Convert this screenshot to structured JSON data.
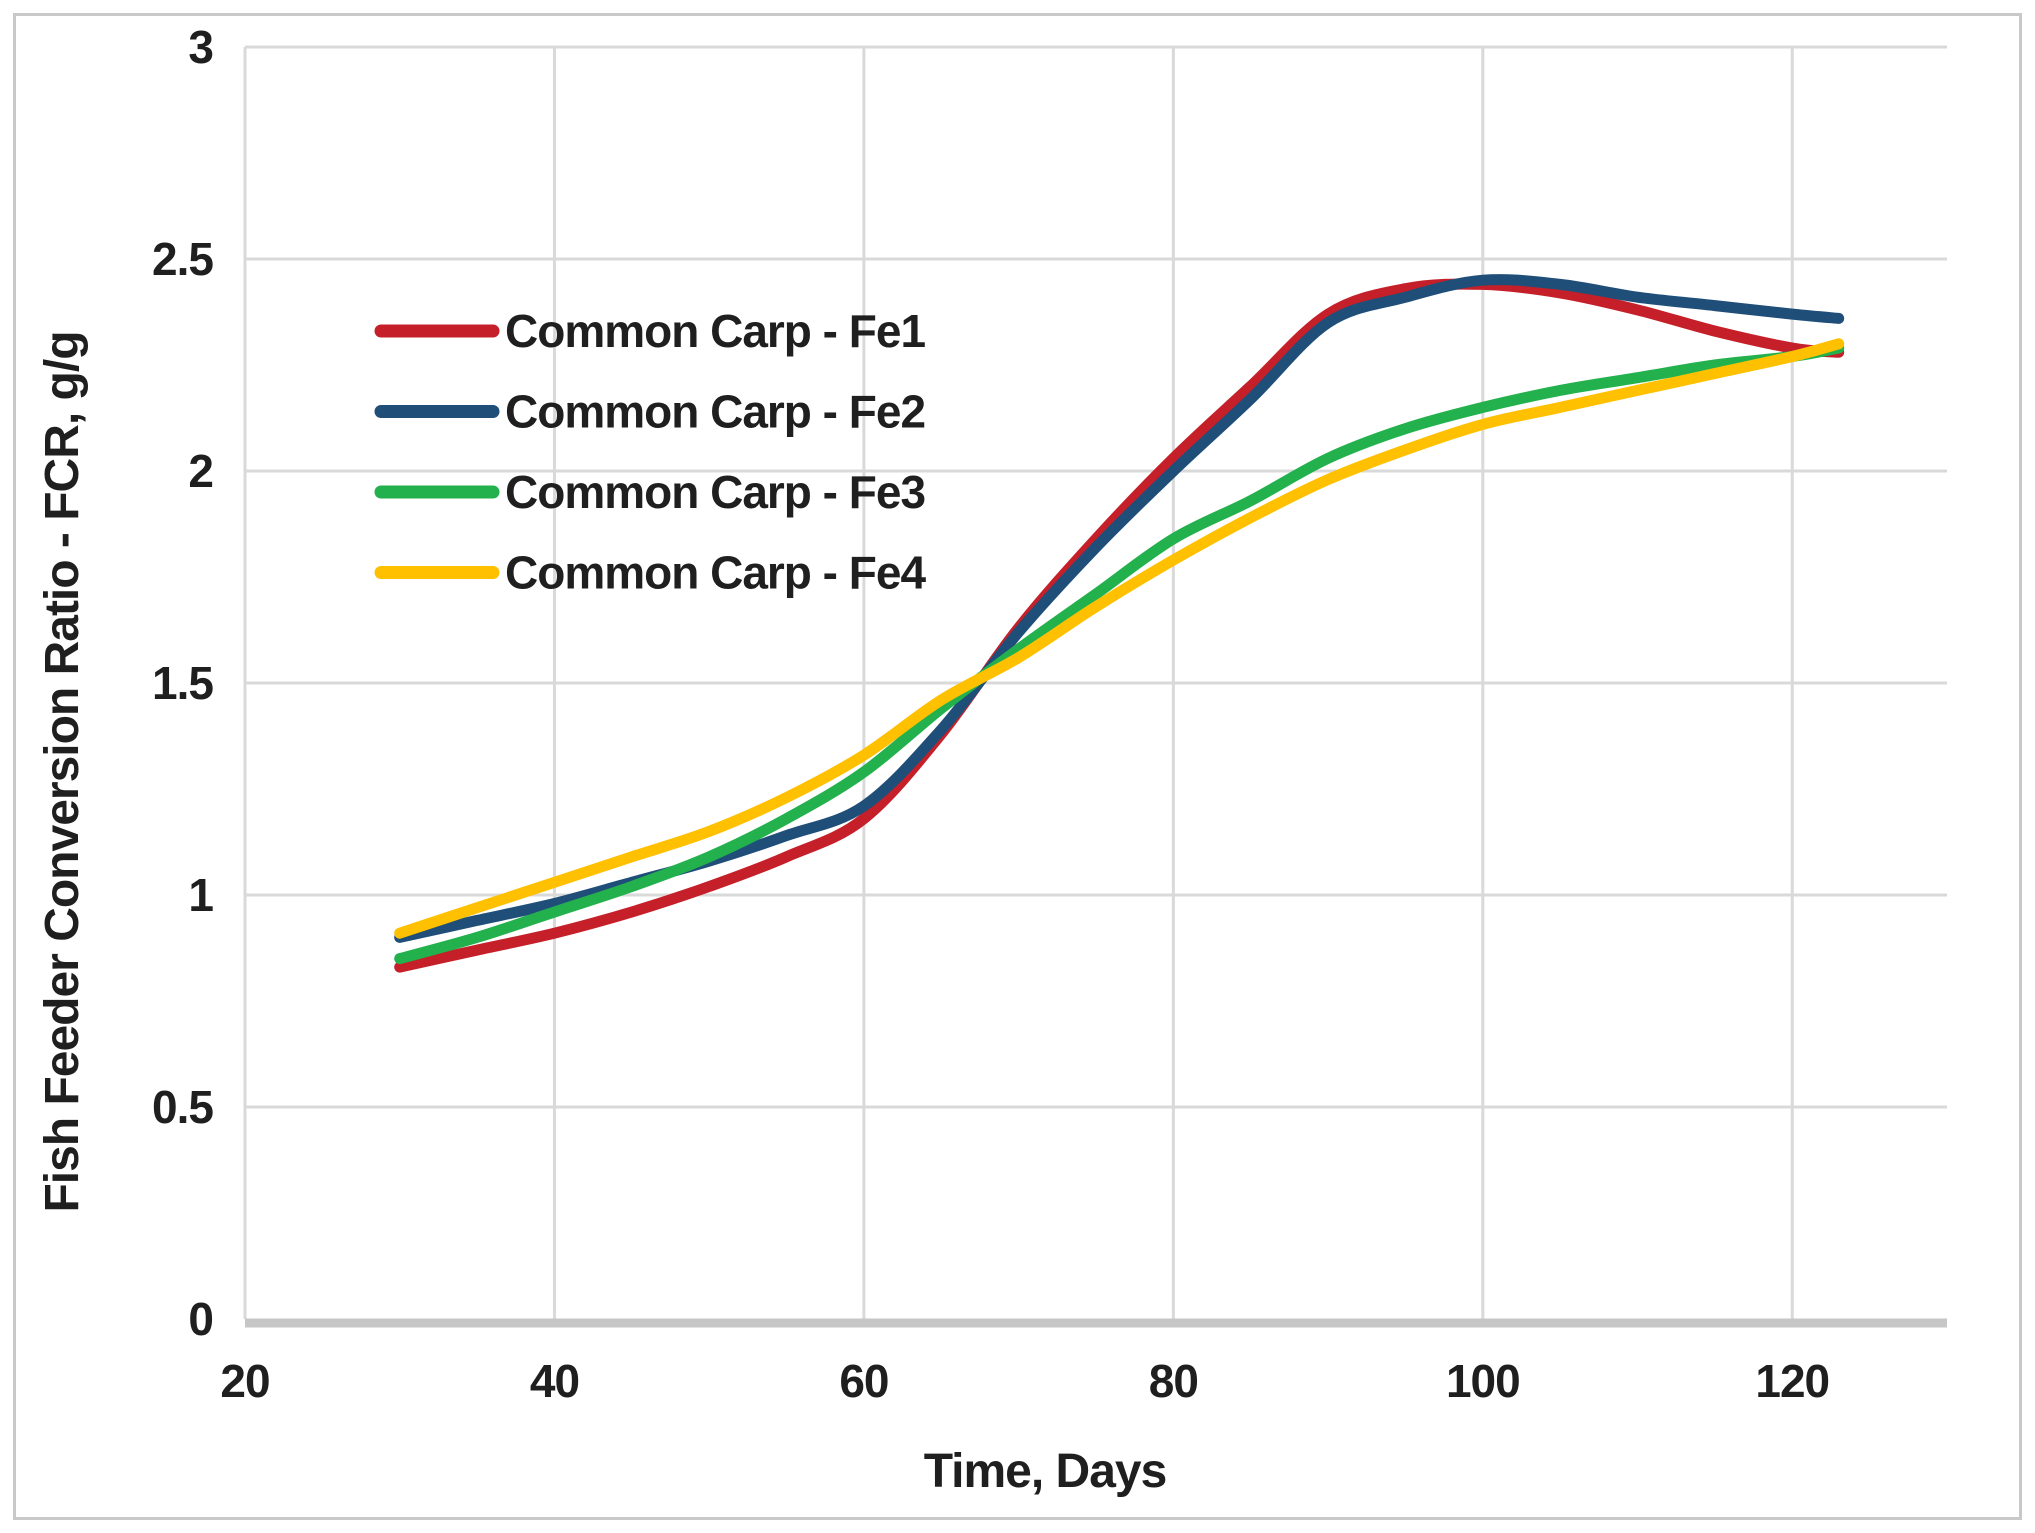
{
  "figure": {
    "background": "#ffffff",
    "border_color": "#c9c9c9",
    "text_color": "#1f1f1f",
    "grid_color": "#d9d9d9",
    "axis_line_color": "#c6c6c6"
  },
  "chart_data": {
    "type": "line",
    "title": "",
    "xlabel": "Time, Days",
    "ylabel": "Fish Feeder Conversion Ratio - FCR, g/g",
    "xlim": [
      20,
      130
    ],
    "ylim": [
      0,
      3
    ],
    "x_ticks": [
      20,
      40,
      60,
      80,
      100,
      120
    ],
    "x_tick_labels": [
      "20",
      "40",
      "60",
      "80",
      "100",
      "120"
    ],
    "y_ticks": [
      0,
      0.5,
      1,
      1.5,
      2,
      2.5,
      3
    ],
    "y_tick_labels": [
      "0",
      "0.5",
      "1",
      "1.5",
      "2",
      "2.5",
      "3"
    ],
    "grid": true,
    "legend_position": "inside-upper-left",
    "x": [
      30,
      35,
      40,
      45,
      50,
      55,
      60,
      65,
      70,
      75,
      80,
      85,
      90,
      95,
      100,
      105,
      110,
      115,
      120,
      123
    ],
    "series": [
      {
        "name": "Common Carp - Fe1",
        "color": "#c5202a",
        "values": [
          0.83,
          0.87,
          0.91,
          0.96,
          1.02,
          1.09,
          1.18,
          1.38,
          1.63,
          1.84,
          2.03,
          2.2,
          2.37,
          2.43,
          2.44,
          2.42,
          2.38,
          2.33,
          2.29,
          2.28
        ]
      },
      {
        "name": "Common Carp - Fe2",
        "color": "#1f4e79",
        "values": [
          0.9,
          0.94,
          0.98,
          1.03,
          1.08,
          1.14,
          1.21,
          1.39,
          1.62,
          1.82,
          2.0,
          2.17,
          2.35,
          2.41,
          2.45,
          2.44,
          2.41,
          2.39,
          2.37,
          2.36
        ]
      },
      {
        "name": "Common Carp - Fe3",
        "color": "#22b14c",
        "values": [
          0.85,
          0.9,
          0.96,
          1.02,
          1.09,
          1.18,
          1.29,
          1.44,
          1.58,
          1.71,
          1.84,
          1.93,
          2.03,
          2.1,
          2.15,
          2.19,
          2.22,
          2.25,
          2.27,
          2.29
        ]
      },
      {
        "name": "Common Carp - Fe4",
        "color": "#ffc000",
        "values": [
          0.91,
          0.97,
          1.03,
          1.09,
          1.15,
          1.23,
          1.33,
          1.46,
          1.56,
          1.68,
          1.79,
          1.89,
          1.98,
          2.05,
          2.11,
          2.15,
          2.19,
          2.23,
          2.27,
          2.3
        ]
      }
    ]
  }
}
